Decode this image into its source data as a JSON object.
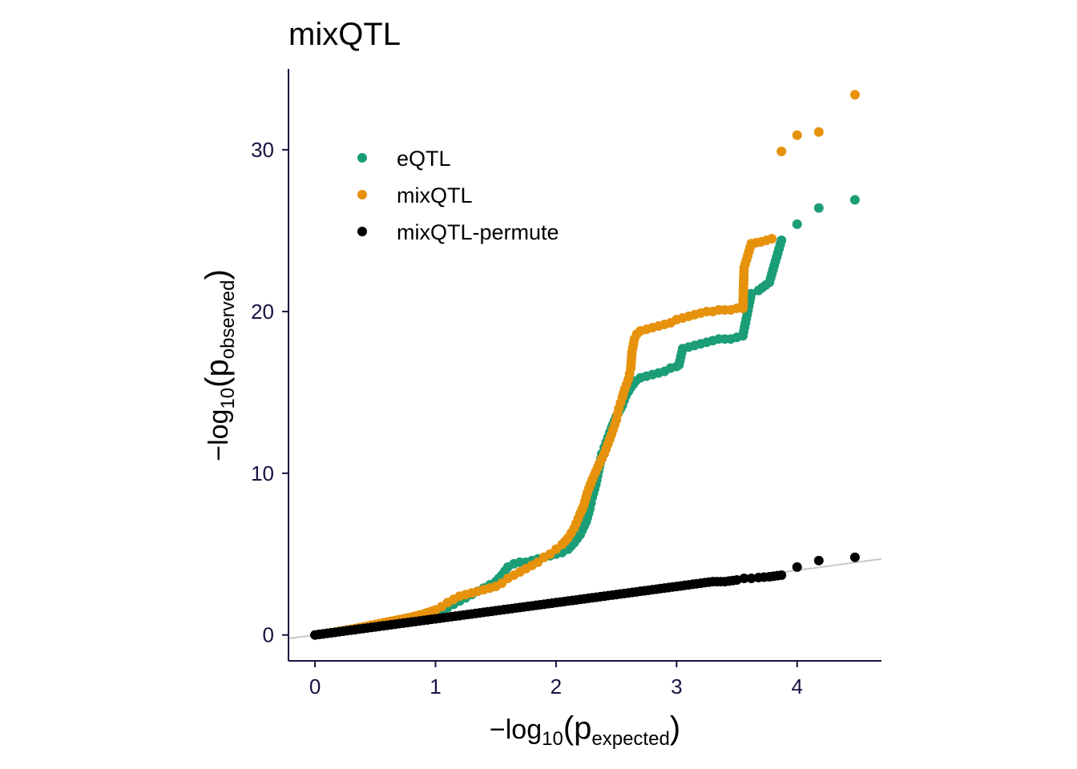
{
  "chart_data": {
    "type": "scatter",
    "title": "mixQTL",
    "xlabel": {
      "prefix": "−log",
      "sub": "10",
      "open": "(p",
      "psub": "expected",
      "close": ")"
    },
    "ylabel": {
      "prefix": "−log",
      "sub": "10",
      "open": "(p",
      "psub": "observed",
      "close": ")"
    },
    "xlim": [
      -0.22,
      4.7
    ],
    "ylim": [
      -1.6,
      35
    ],
    "x_ticks": [
      0,
      1,
      2,
      3,
      4
    ],
    "y_ticks": [
      0,
      10,
      20,
      30
    ],
    "x_tick_labels": [
      "0",
      "1",
      "2",
      "3",
      "4"
    ],
    "y_tick_labels": [
      "0",
      "10",
      "20",
      "30"
    ],
    "grid": false,
    "legend_position": "top-left",
    "reference_line": {
      "slope": 1,
      "intercept": 0,
      "color": "#c8c8c8"
    },
    "axis_color": "#1a1040",
    "series": [
      {
        "name": "eQTL",
        "color": "#1b9e77",
        "points": [
          [
            0.0,
            0.0
          ],
          [
            0.1,
            0.1
          ],
          [
            0.2,
            0.2
          ],
          [
            0.3,
            0.3
          ],
          [
            0.4,
            0.4
          ],
          [
            0.5,
            0.5
          ],
          [
            0.6,
            0.62
          ],
          [
            0.7,
            0.75
          ],
          [
            0.8,
            0.9
          ],
          [
            0.9,
            1.1
          ],
          [
            1.0,
            1.35
          ],
          [
            1.05,
            1.5
          ],
          [
            1.1,
            1.7
          ],
          [
            1.15,
            1.9
          ],
          [
            1.2,
            2.1
          ],
          [
            1.25,
            2.3
          ],
          [
            1.3,
            2.5
          ],
          [
            1.35,
            2.7
          ],
          [
            1.4,
            2.9
          ],
          [
            1.45,
            3.1
          ],
          [
            1.5,
            3.3
          ],
          [
            1.55,
            3.7
          ],
          [
            1.6,
            4.2
          ],
          [
            1.65,
            4.4
          ],
          [
            1.7,
            4.5
          ],
          [
            1.75,
            4.5
          ],
          [
            1.8,
            4.6
          ],
          [
            1.85,
            4.7
          ],
          [
            1.9,
            4.8
          ],
          [
            1.95,
            4.9
          ],
          [
            2.0,
            5.0
          ],
          [
            2.05,
            5.1
          ],
          [
            2.1,
            5.3
          ],
          [
            2.15,
            5.7
          ],
          [
            2.2,
            6.2
          ],
          [
            2.25,
            7.0
          ],
          [
            2.28,
            7.8
          ],
          [
            2.3,
            8.5
          ],
          [
            2.33,
            9.3
          ],
          [
            2.36,
            10.4
          ],
          [
            2.38,
            11.2
          ],
          [
            2.4,
            11.6
          ],
          [
            2.43,
            12.2
          ],
          [
            2.46,
            12.8
          ],
          [
            2.5,
            13.5
          ],
          [
            2.55,
            14.2
          ],
          [
            2.58,
            14.8
          ],
          [
            2.62,
            15.3
          ],
          [
            2.66,
            15.7
          ],
          [
            2.7,
            15.9
          ],
          [
            2.75,
            16.0
          ],
          [
            2.8,
            16.1
          ],
          [
            2.85,
            16.2
          ],
          [
            2.9,
            16.3
          ],
          [
            2.95,
            16.5
          ],
          [
            3.0,
            16.6
          ],
          [
            3.02,
            16.7
          ],
          [
            3.05,
            17.7
          ],
          [
            3.1,
            17.8
          ],
          [
            3.15,
            17.9
          ],
          [
            3.2,
            18.0
          ],
          [
            3.25,
            18.1
          ],
          [
            3.3,
            18.2
          ],
          [
            3.35,
            18.3
          ],
          [
            3.4,
            18.3
          ],
          [
            3.45,
            18.3
          ],
          [
            3.5,
            18.4
          ],
          [
            3.55,
            18.5
          ],
          [
            3.62,
            21.1
          ],
          [
            3.68,
            21.3
          ],
          [
            3.77,
            21.8
          ],
          [
            3.87,
            24.4
          ],
          [
            4.0,
            25.4
          ],
          [
            4.18,
            26.4
          ],
          [
            4.48,
            26.9
          ]
        ]
      },
      {
        "name": "mixQTL",
        "color": "#e6920c",
        "points": [
          [
            0.0,
            0.0
          ],
          [
            0.1,
            0.1
          ],
          [
            0.2,
            0.22
          ],
          [
            0.3,
            0.35
          ],
          [
            0.4,
            0.5
          ],
          [
            0.5,
            0.65
          ],
          [
            0.6,
            0.8
          ],
          [
            0.7,
            0.95
          ],
          [
            0.8,
            1.1
          ],
          [
            0.9,
            1.3
          ],
          [
            1.0,
            1.55
          ],
          [
            1.05,
            1.75
          ],
          [
            1.1,
            2.0
          ],
          [
            1.15,
            2.2
          ],
          [
            1.2,
            2.4
          ],
          [
            1.25,
            2.5
          ],
          [
            1.3,
            2.6
          ],
          [
            1.35,
            2.7
          ],
          [
            1.4,
            2.8
          ],
          [
            1.45,
            2.9
          ],
          [
            1.5,
            3.0
          ],
          [
            1.55,
            3.2
          ],
          [
            1.6,
            3.5
          ],
          [
            1.65,
            3.7
          ],
          [
            1.7,
            3.9
          ],
          [
            1.75,
            4.1
          ],
          [
            1.8,
            4.3
          ],
          [
            1.85,
            4.5
          ],
          [
            1.9,
            4.8
          ],
          [
            1.95,
            5.0
          ],
          [
            2.0,
            5.3
          ],
          [
            2.05,
            5.6
          ],
          [
            2.1,
            6.0
          ],
          [
            2.15,
            6.6
          ],
          [
            2.2,
            7.5
          ],
          [
            2.23,
            8.0
          ],
          [
            2.26,
            8.8
          ],
          [
            2.3,
            9.6
          ],
          [
            2.33,
            10.1
          ],
          [
            2.36,
            10.6
          ],
          [
            2.4,
            11.2
          ],
          [
            2.43,
            11.8
          ],
          [
            2.46,
            12.4
          ],
          [
            2.5,
            13.3
          ],
          [
            2.52,
            14.0
          ],
          [
            2.55,
            14.7
          ],
          [
            2.57,
            15.2
          ],
          [
            2.6,
            15.8
          ],
          [
            2.62,
            16.5
          ],
          [
            2.63,
            17.5
          ],
          [
            2.65,
            18.3
          ],
          [
            2.67,
            18.6
          ],
          [
            2.7,
            18.8
          ],
          [
            2.75,
            18.9
          ],
          [
            2.8,
            19.0
          ],
          [
            2.85,
            19.1
          ],
          [
            2.9,
            19.2
          ],
          [
            2.95,
            19.3
          ],
          [
            3.0,
            19.5
          ],
          [
            3.05,
            19.6
          ],
          [
            3.1,
            19.7
          ],
          [
            3.15,
            19.8
          ],
          [
            3.2,
            19.9
          ],
          [
            3.25,
            20.0
          ],
          [
            3.3,
            20.0
          ],
          [
            3.35,
            20.1
          ],
          [
            3.4,
            20.1
          ],
          [
            3.45,
            20.1
          ],
          [
            3.5,
            20.2
          ],
          [
            3.55,
            20.2
          ],
          [
            3.56,
            22.7
          ],
          [
            3.62,
            24.2
          ],
          [
            3.7,
            24.3
          ],
          [
            3.79,
            24.5
          ],
          [
            3.87,
            29.9
          ],
          [
            4.0,
            30.9
          ],
          [
            4.18,
            31.1
          ],
          [
            4.48,
            33.4
          ]
        ]
      },
      {
        "name": "mixQTL-permute",
        "color": "#000000",
        "points": [
          [
            0.0,
            0.0
          ],
          [
            0.1,
            0.1
          ],
          [
            0.2,
            0.2
          ],
          [
            0.3,
            0.3
          ],
          [
            0.4,
            0.4
          ],
          [
            0.5,
            0.5
          ],
          [
            0.6,
            0.6
          ],
          [
            0.7,
            0.7
          ],
          [
            0.8,
            0.8
          ],
          [
            0.9,
            0.9
          ],
          [
            1.0,
            1.0
          ],
          [
            1.1,
            1.1
          ],
          [
            1.2,
            1.2
          ],
          [
            1.3,
            1.3
          ],
          [
            1.4,
            1.4
          ],
          [
            1.5,
            1.5
          ],
          [
            1.6,
            1.6
          ],
          [
            1.7,
            1.7
          ],
          [
            1.8,
            1.8
          ],
          [
            1.9,
            1.9
          ],
          [
            2.0,
            2.0
          ],
          [
            2.1,
            2.1
          ],
          [
            2.2,
            2.2
          ],
          [
            2.3,
            2.3
          ],
          [
            2.4,
            2.4
          ],
          [
            2.5,
            2.5
          ],
          [
            2.6,
            2.6
          ],
          [
            2.7,
            2.7
          ],
          [
            2.8,
            2.8
          ],
          [
            2.9,
            2.9
          ],
          [
            3.0,
            3.0
          ],
          [
            3.1,
            3.1
          ],
          [
            3.2,
            3.2
          ],
          [
            3.3,
            3.3
          ],
          [
            3.4,
            3.3
          ],
          [
            3.5,
            3.4
          ],
          [
            3.56,
            3.5
          ],
          [
            3.62,
            3.5
          ],
          [
            3.68,
            3.55
          ],
          [
            3.77,
            3.6
          ],
          [
            3.87,
            3.7
          ],
          [
            4.0,
            4.2
          ],
          [
            4.18,
            4.6
          ],
          [
            4.48,
            4.8
          ]
        ]
      }
    ]
  }
}
